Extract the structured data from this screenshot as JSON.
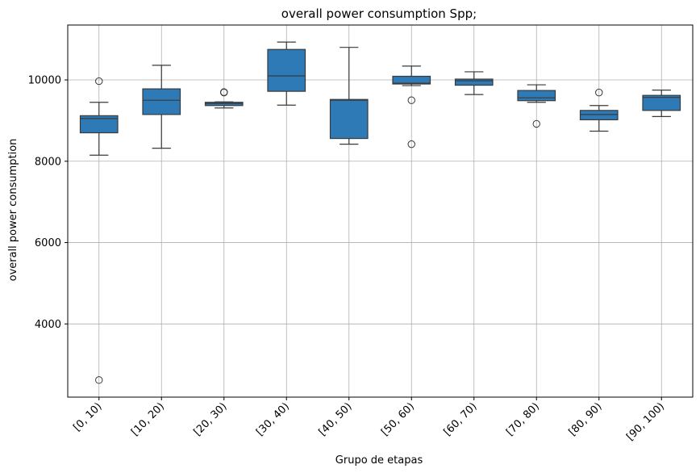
{
  "chart_data": {
    "type": "box",
    "title": "overall power consumption Spp;",
    "xlabel": "Grupo de etapas",
    "ylabel": "overall power consumption",
    "ylim": [
      2200,
      11350
    ],
    "yticks": [
      4000,
      6000,
      8000,
      10000
    ],
    "grid": true,
    "box_color": "#2e7ab6",
    "edge_color": "#3a3a3a",
    "categories": [
      "[0, 10)",
      "[10, 20)",
      "[20, 30)",
      "[30, 40)",
      "[40, 50)",
      "[50, 60)",
      "[60, 70)",
      "[70, 80)",
      "[80, 90)",
      "[90, 100)"
    ],
    "boxes": [
      {
        "whislo": 8150,
        "q1": 8700,
        "med": 9050,
        "q3": 9120,
        "whishi": 9450,
        "fliers": [
          9970,
          2620
        ]
      },
      {
        "whislo": 8320,
        "q1": 9150,
        "med": 9500,
        "q3": 9780,
        "whishi": 10360,
        "fliers": []
      },
      {
        "whislo": 9310,
        "q1": 9370,
        "med": 9420,
        "q3": 9450,
        "whishi": 9460,
        "fliers": [
          9700,
          9690
        ]
      },
      {
        "whislo": 9380,
        "q1": 9720,
        "med": 10100,
        "q3": 10750,
        "whishi": 10930,
        "fliers": []
      },
      {
        "whislo": 8420,
        "q1": 8560,
        "med": 9500,
        "q3": 9520,
        "whishi": 10800,
        "fliers": []
      },
      {
        "whislo": 9860,
        "q1": 9900,
        "med": 9920,
        "q3": 10090,
        "whishi": 10340,
        "fliers": [
          9500,
          8420
        ]
      },
      {
        "whislo": 9640,
        "q1": 9870,
        "med": 9980,
        "q3": 10020,
        "whishi": 10200,
        "fliers": []
      },
      {
        "whislo": 9450,
        "q1": 9490,
        "med": 9560,
        "q3": 9740,
        "whishi": 9880,
        "fliers": [
          8920
        ]
      },
      {
        "whislo": 8740,
        "q1": 9020,
        "med": 9150,
        "q3": 9250,
        "whishi": 9370,
        "fliers": [
          9690
        ]
      },
      {
        "whislo": 9100,
        "q1": 9250,
        "med": 9570,
        "q3": 9620,
        "whishi": 9750,
        "fliers": []
      }
    ]
  }
}
